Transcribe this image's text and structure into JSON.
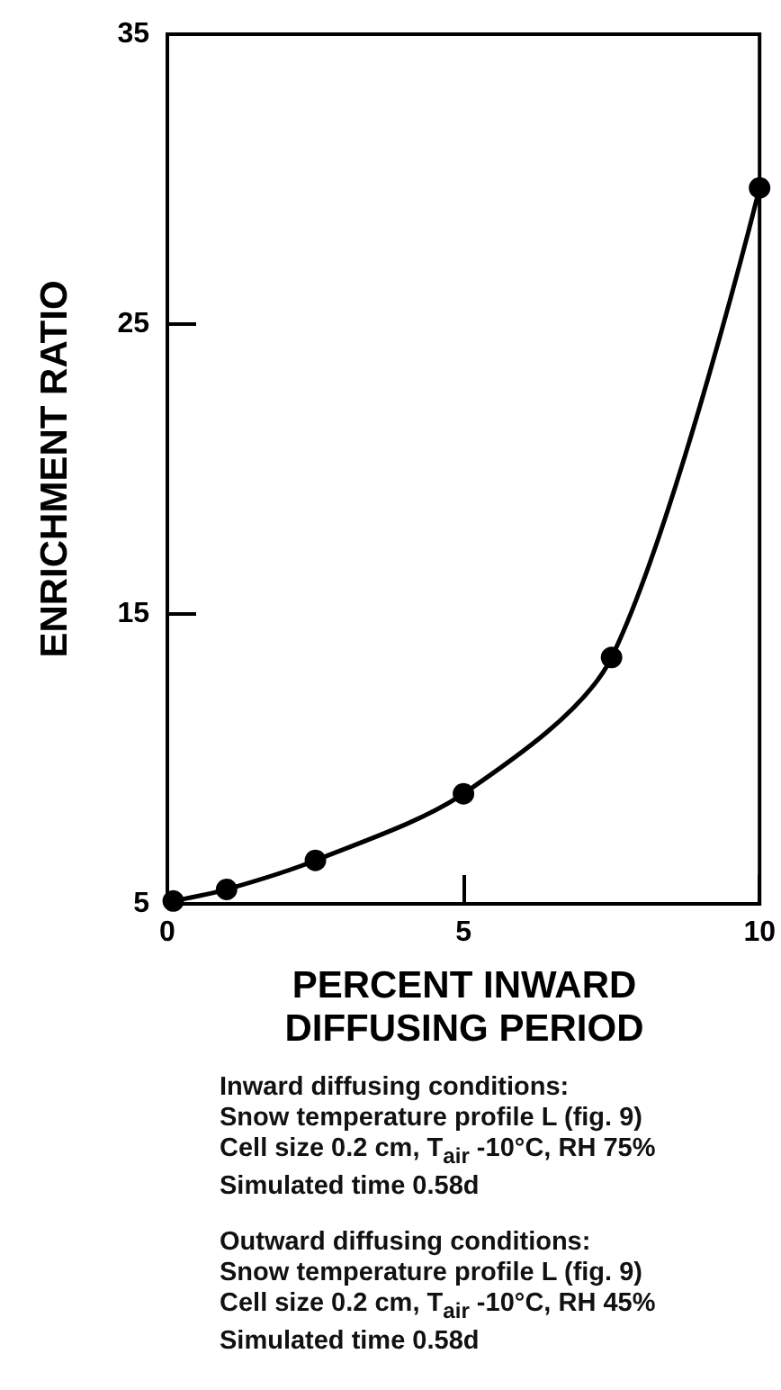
{
  "chart_data": {
    "type": "line",
    "xlabel": "PERCENT INWARD DIFFUSING PERIOD",
    "ylabel": "ENRICHMENT RATIO",
    "x": [
      0.1,
      1,
      2.5,
      5,
      7.5,
      10
    ],
    "series": [
      {
        "color": "#000000",
        "values": [
          5.1,
          5.5,
          6.5,
          8.8,
          13.5,
          29.7
        ]
      }
    ],
    "marker": "circle",
    "line_style": "solid",
    "grid": false,
    "xlim": [
      0,
      10
    ],
    "xticks": [
      0,
      5,
      10
    ],
    "ylim": [
      5,
      35
    ],
    "yticks": [
      5,
      15,
      25,
      35
    ],
    "annotations": [
      "Inward diffusing conditions:\nSnow temperature profile L (fig. 9)\nCell size 0.2 cm, T$_{air}$ -10°C, RH 75%\nSimulated time 0.58d",
      "Outward diffusing conditions:\nSnow temperature profile L (fig. 9)\nCell size 0.2 cm, T$_{air}$ -10°C, RH 45%\nSimulated time 0.58d"
    ]
  }
}
